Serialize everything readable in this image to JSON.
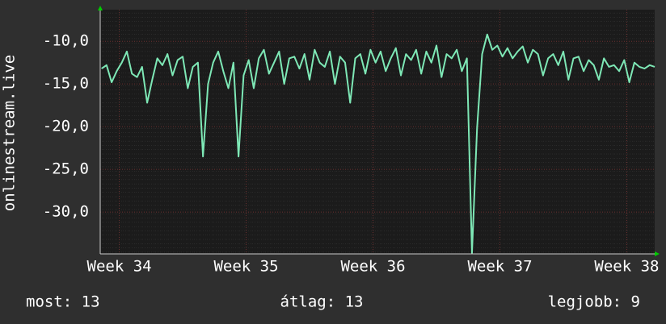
{
  "chart_data": {
    "type": "line",
    "y_label": "onlinestream.live",
    "x": [
      33.86,
      33.9,
      33.94,
      33.98,
      34.02,
      34.06,
      34.1,
      34.14,
      34.18,
      34.22,
      34.26,
      34.3,
      34.34,
      34.38,
      34.42,
      34.46,
      34.5,
      34.54,
      34.58,
      34.62,
      34.66,
      34.7,
      34.74,
      34.78,
      34.82,
      34.86,
      34.9,
      34.94,
      34.98,
      35.02,
      35.06,
      35.1,
      35.14,
      35.18,
      35.22,
      35.26,
      35.3,
      35.34,
      35.38,
      35.42,
      35.46,
      35.5,
      35.54,
      35.58,
      35.62,
      35.66,
      35.7,
      35.74,
      35.78,
      35.82,
      35.86,
      35.9,
      35.94,
      35.98,
      36.02,
      36.06,
      36.1,
      36.14,
      36.18,
      36.22,
      36.26,
      36.3,
      36.34,
      36.38,
      36.42,
      36.46,
      36.5,
      36.54,
      36.58,
      36.62,
      36.66,
      36.7,
      36.74,
      36.78,
      36.82,
      36.86,
      36.9,
      36.94,
      36.98,
      37.02,
      37.06,
      37.1,
      37.14,
      37.18,
      37.22,
      37.26,
      37.3,
      37.34,
      37.38,
      37.42,
      37.46,
      37.5,
      37.54,
      37.58,
      37.62,
      37.66,
      37.7,
      37.74,
      37.78,
      37.82,
      37.86,
      37.9,
      37.94,
      37.98,
      38.02,
      38.06,
      38.1,
      38.14,
      38.18,
      38.22
    ],
    "series": [
      {
        "color": "#7ee8b6",
        "values": [
          -13.2,
          -12.8,
          -14.8,
          -13.5,
          -12.5,
          -11.2,
          -13.8,
          -14.2,
          -13,
          -17.2,
          -14.5,
          -12,
          -12.8,
          -11.5,
          -14,
          -12.2,
          -11.8,
          -15.5,
          -13,
          -12.5,
          -23.5,
          -15,
          -12.5,
          -11.2,
          -13.5,
          -15.5,
          -12.5,
          -23.5,
          -14,
          -12.2,
          -15.5,
          -12,
          -11,
          -13.8,
          -12.5,
          -11.2,
          -15,
          -12,
          -11.8,
          -13.2,
          -11.5,
          -14.5,
          -11,
          -12.5,
          -13,
          -11.2,
          -15,
          -11.8,
          -12.5,
          -17.2,
          -12,
          -11.5,
          -13.8,
          -11,
          -12.5,
          -11.2,
          -13.5,
          -12,
          -10.8,
          -14,
          -11.5,
          -12.2,
          -11,
          -13.8,
          -11.2,
          -12.5,
          -10.5,
          -14.2,
          -11.5,
          -12,
          -11,
          -13.5,
          -12,
          -34.8,
          -20.2,
          -11.5,
          -9.2,
          -11,
          -10.5,
          -11.8,
          -10.8,
          -12,
          -11.2,
          -10.6,
          -12.5,
          -11,
          -11.5,
          -14,
          -12,
          -11.5,
          -12.8,
          -11.2,
          -14.5,
          -12,
          -11.8,
          -13.5,
          -12.2,
          -12.8,
          -14.5,
          -12,
          -13,
          -12.8,
          -13.5,
          -12.2,
          -14.8,
          -12.5,
          -13,
          -13.2,
          -12.8,
          -13
        ]
      }
    ],
    "xlim": [
      33.85,
      38.22
    ],
    "ylim": [
      -34.9,
      -6.3
    ],
    "xticks": [
      {
        "value": 34,
        "label": "Week 34"
      },
      {
        "value": 35,
        "label": "Week 35"
      },
      {
        "value": 36,
        "label": "Week 36"
      },
      {
        "value": 37,
        "label": "Week 37"
      },
      {
        "value": 38,
        "label": "Week 38"
      }
    ],
    "yticks": [
      {
        "value": -10,
        "label": "-10,0"
      },
      {
        "value": -15,
        "label": "-15,0"
      },
      {
        "value": -20,
        "label": "-20,0"
      },
      {
        "value": -25,
        "label": "-25,0"
      },
      {
        "value": -30,
        "label": "-30,0"
      }
    ],
    "grid": true,
    "footer": [
      "most: 13",
      "átlag: 13",
      "legjobb: 9"
    ]
  }
}
